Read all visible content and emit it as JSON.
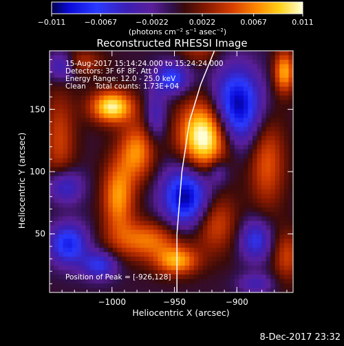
{
  "chart_data": {
    "type": "heatmap",
    "title": "Reconstructed RHESSI Image",
    "xlabel": "Heliocentric X (arcsec)",
    "ylabel": "Heliocentric Y (arcsec)",
    "xlim": [
      -1050,
      -855
    ],
    "ylim": [
      3,
      197
    ],
    "x_ticks": [
      -1000,
      -950,
      -900
    ],
    "x_tick_labels": [
      "−1000",
      "−950",
      "−900"
    ],
    "y_ticks": [
      50,
      100,
      150
    ],
    "y_tick_labels": [
      "50",
      "100",
      "150"
    ],
    "colorbar": {
      "range": [
        -0.011,
        0.011
      ],
      "ticks": [
        -0.011,
        -0.0067,
        -0.0022,
        0.0022,
        0.0067,
        0.011
      ],
      "tick_labels": [
        "−0.011",
        "−0.0067",
        "−0.0022",
        "0.0022",
        "0.0067",
        "0.011"
      ],
      "label_main": "(photons cm",
      "label_exp1": "−2",
      "label_mid1": " s",
      "label_exp2": "−1",
      "label_mid2": " asec",
      "label_exp3": "−2",
      "label_end": ")"
    },
    "annotations": [
      "15-Aug-2017 15:14:24.000 to 15:24:24.000",
      "Detectors: 3F 6F 8F, Att 0",
      "Energy Range: 12.0 - 25.0 keV",
      "Clean    Total counts: 1.73E+04"
    ],
    "peak_label": "Position of Peak = [-926,128]",
    "peak": {
      "x": -926,
      "y": 128,
      "value": 0.011
    },
    "blobs": [
      {
        "x": -926,
        "y": 128,
        "sx": 14,
        "sy": 20,
        "amp": 0.0125
      },
      {
        "x": -1000,
        "y": 152,
        "sx": 12,
        "sy": 9,
        "amp": 0.0105
      },
      {
        "x": -980,
        "y": 116,
        "sx": 10,
        "sy": 16,
        "amp": 0.007
      },
      {
        "x": -995,
        "y": 80,
        "sx": 9,
        "sy": 20,
        "amp": 0.0075
      },
      {
        "x": -972,
        "y": 45,
        "sx": 20,
        "sy": 11,
        "amp": 0.0065
      },
      {
        "x": -948,
        "y": 28,
        "sx": 12,
        "sy": 8,
        "amp": 0.0075
      },
      {
        "x": -918,
        "y": 60,
        "sx": 12,
        "sy": 17,
        "amp": 0.0055
      },
      {
        "x": -876,
        "y": 108,
        "sx": 10,
        "sy": 26,
        "amp": 0.0055
      },
      {
        "x": -862,
        "y": 180,
        "sx": 6,
        "sy": 12,
        "amp": 0.008
      },
      {
        "x": -1042,
        "y": 125,
        "sx": 9,
        "sy": 28,
        "amp": 0.0045
      },
      {
        "x": -860,
        "y": 32,
        "sx": 8,
        "sy": 14,
        "amp": 0.0045
      },
      {
        "x": -1025,
        "y": 188,
        "sx": 12,
        "sy": 7,
        "amp": 0.004
      },
      {
        "x": -930,
        "y": 196,
        "sx": 12,
        "sy": 7,
        "amp": 0.003
      },
      {
        "x": -940,
        "y": 80,
        "sx": 14,
        "sy": 18,
        "amp": -0.011
      },
      {
        "x": -900,
        "y": 152,
        "sx": 14,
        "sy": 22,
        "amp": -0.011
      },
      {
        "x": -952,
        "y": 175,
        "sx": 10,
        "sy": 9,
        "amp": -0.0075
      },
      {
        "x": -1035,
        "y": 42,
        "sx": 11,
        "sy": 12,
        "amp": -0.0085
      },
      {
        "x": -1010,
        "y": 25,
        "sx": 10,
        "sy": 8,
        "amp": -0.0065
      },
      {
        "x": -1038,
        "y": 88,
        "sx": 10,
        "sy": 10,
        "amp": -0.0065
      },
      {
        "x": -1040,
        "y": 185,
        "sx": 8,
        "sy": 8,
        "amp": -0.006
      },
      {
        "x": -885,
        "y": 45,
        "sx": 9,
        "sy": 12,
        "amp": -0.0065
      },
      {
        "x": -915,
        "y": 100,
        "sx": 6,
        "sy": 8,
        "amp": -0.004
      },
      {
        "x": -965,
        "y": 145,
        "sx": 6,
        "sy": 14,
        "amp": -0.0045
      },
      {
        "x": -885,
        "y": 10,
        "sx": 10,
        "sy": 6,
        "amp": -0.004
      }
    ],
    "limb": [
      {
        "x": -948,
        "y": 3
      },
      {
        "x": -948,
        "y": 50
      },
      {
        "x": -944,
        "y": 100
      },
      {
        "x": -938,
        "y": 140
      },
      {
        "x": -929,
        "y": 170
      },
      {
        "x": -918,
        "y": 197
      }
    ],
    "pixels_per_axis": 54,
    "colors": {
      "background": "#000000",
      "text": "#ffffff",
      "limb": "#ffffff"
    }
  },
  "footer": {
    "date": "8-Dec-2017 23:32"
  }
}
